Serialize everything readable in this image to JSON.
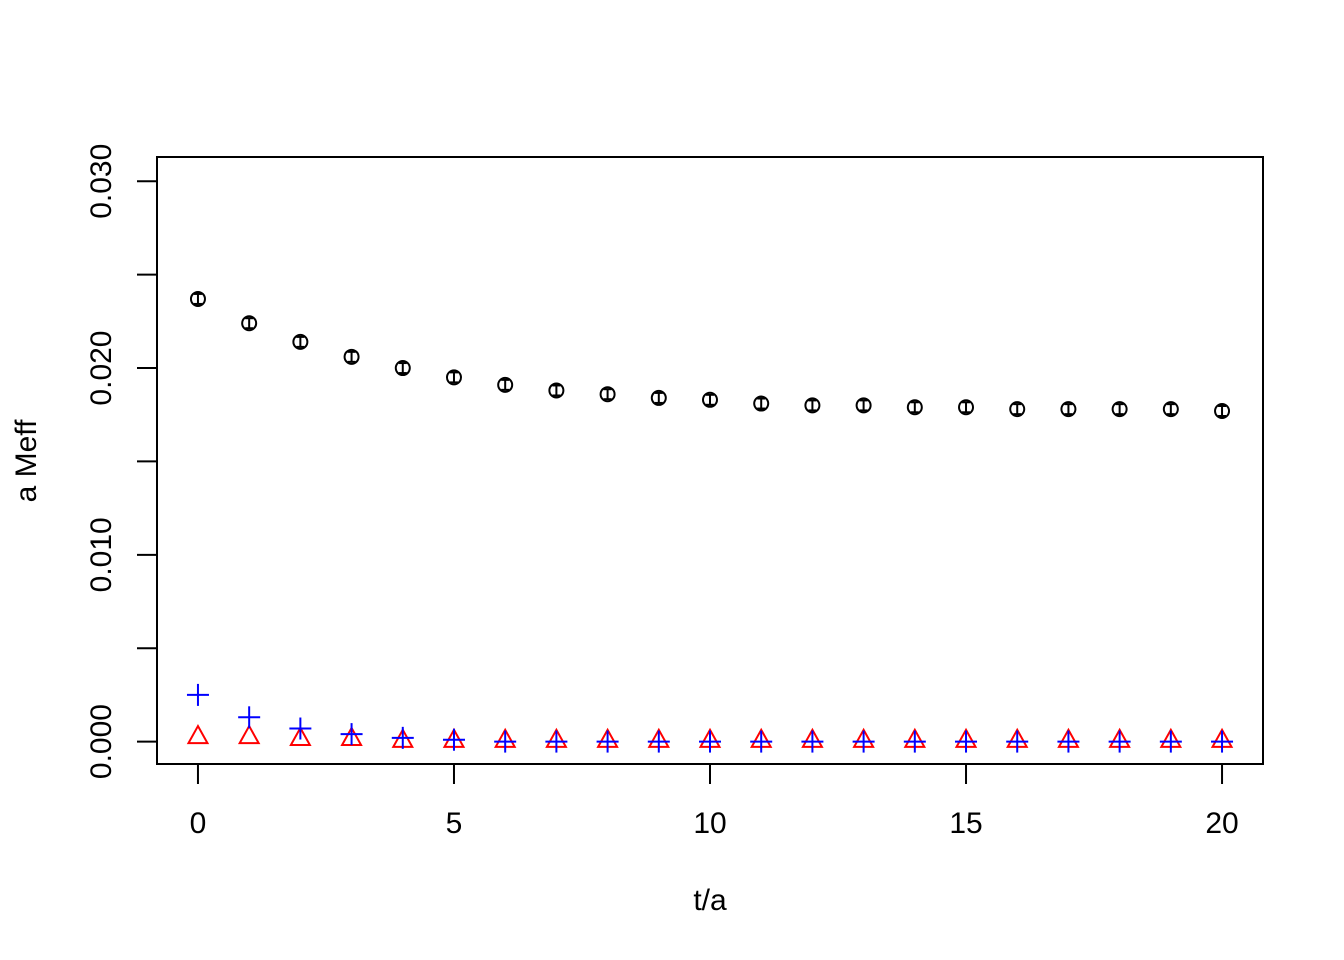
{
  "chart_data": {
    "type": "scatter",
    "title": "",
    "xlabel": "t/a",
    "ylabel": "a Meff",
    "xlim": [
      -0.8,
      20.8
    ],
    "ylim": [
      -0.0012,
      0.0313
    ],
    "xticks": [
      "0",
      "5",
      "10",
      "15",
      "20"
    ],
    "yticks": [
      "0.000",
      "0.010",
      "0.020",
      "0.030"
    ],
    "legend": "none",
    "grid": false,
    "series": [
      {
        "marker": "circle",
        "color": "#000000",
        "error_bars": true,
        "x": [
          0,
          1,
          2,
          3,
          4,
          5,
          6,
          7,
          8,
          9,
          10,
          11,
          12,
          13,
          14,
          15,
          16,
          17,
          18,
          19,
          20
        ],
        "y": [
          0.0237,
          0.0224,
          0.0214,
          0.0206,
          0.02,
          0.0195,
          0.0191,
          0.0188,
          0.0186,
          0.0184,
          0.0183,
          0.0181,
          0.018,
          0.018,
          0.0179,
          0.0179,
          0.0178,
          0.0178,
          0.0178,
          0.0178,
          0.0177
        ]
      },
      {
        "marker": "triangle",
        "color": "#ff0000",
        "x": [
          0,
          1,
          2,
          3,
          4,
          5,
          6,
          7,
          8,
          9,
          10,
          11,
          12,
          13,
          14,
          15,
          16,
          17,
          18,
          19,
          20
        ],
        "y": [
          0.0003,
          0.0003,
          0.0002,
          0.0002,
          0.0001,
          0.0001,
          0.0001,
          0.0001,
          0.0001,
          0.0001,
          0.0001,
          0.0001,
          0.0001,
          0.0001,
          0.0001,
          0.0001,
          0.0001,
          0.0001,
          0.0001,
          0.0001,
          0.0001
        ]
      },
      {
        "marker": "plus",
        "color": "#0000ff",
        "x": [
          0,
          1,
          2,
          3,
          4,
          5,
          6,
          7,
          8,
          9,
          10,
          11,
          12,
          13,
          14,
          15,
          16,
          17,
          18,
          19,
          20
        ],
        "y": [
          0.0025,
          0.0013,
          0.0007,
          0.0004,
          0.0002,
          0.0001,
          0.0,
          0.0,
          0.0,
          0.0,
          0.0,
          0.0,
          0.0,
          0.0,
          0.0,
          0.0,
          0.0,
          0.0,
          0.0,
          0.0,
          0.0
        ]
      }
    ]
  }
}
